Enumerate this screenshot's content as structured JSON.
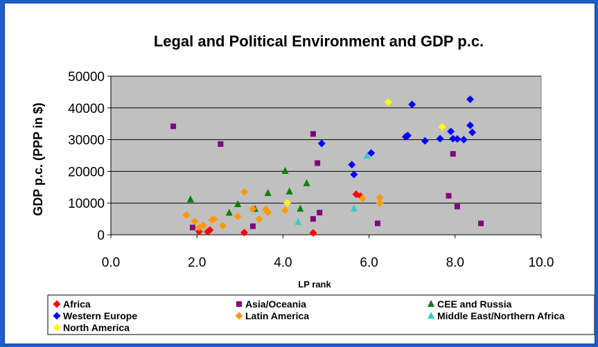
{
  "chart_data": {
    "type": "scatter",
    "title": "Legal and Political Environment and GDP p.c.",
    "xlabel": "LP rank",
    "ylabel": "GDP p.c. (PPP in $)",
    "xlim": [
      0,
      10
    ],
    "ylim": [
      0,
      50000
    ],
    "x_ticks": [
      "0.0",
      "2.0",
      "4.0",
      "6.0",
      "8.0",
      "10.0"
    ],
    "y_ticks": [
      "0",
      "10000",
      "20000",
      "30000",
      "40000",
      "50000"
    ],
    "grid": true,
    "legend_position": "bottom",
    "series": [
      {
        "name": "Africa",
        "color": "#ff0000",
        "marker": "diamond",
        "points": [
          [
            2.05,
            1000
          ],
          [
            2.25,
            1000
          ],
          [
            2.3,
            1500
          ],
          [
            3.1,
            700
          ],
          [
            4.7,
            600
          ],
          [
            5.7,
            12800
          ],
          [
            5.8,
            12200
          ]
        ]
      },
      {
        "name": "Asia/Oceania",
        "color": "#800080",
        "marker": "square",
        "points": [
          [
            1.45,
            34200
          ],
          [
            2.55,
            28600
          ],
          [
            4.7,
            31800
          ],
          [
            4.8,
            22600
          ],
          [
            1.9,
            2300
          ],
          [
            3.3,
            2700
          ],
          [
            4.7,
            5000
          ],
          [
            4.85,
            7000
          ],
          [
            6.2,
            3600
          ],
          [
            7.85,
            12300
          ],
          [
            7.95,
            25500
          ],
          [
            8.05,
            8900
          ],
          [
            8.6,
            3600
          ]
        ]
      },
      {
        "name": "CEE and Russia",
        "color": "#008000",
        "marker": "triangle",
        "points": [
          [
            1.85,
            11100
          ],
          [
            2.75,
            6900
          ],
          [
            2.95,
            9600
          ],
          [
            3.35,
            8100
          ],
          [
            3.65,
            13100
          ],
          [
            4.05,
            20100
          ],
          [
            4.15,
            13600
          ],
          [
            4.4,
            8200
          ],
          [
            4.55,
            16200
          ]
        ]
      },
      {
        "name": "Western Europe",
        "color": "#0000ff",
        "marker": "diamond",
        "points": [
          [
            4.9,
            28800
          ],
          [
            5.6,
            22100
          ],
          [
            5.65,
            19000
          ],
          [
            6.05,
            25800
          ],
          [
            6.85,
            30900
          ],
          [
            6.9,
            31300
          ],
          [
            7.0,
            41100
          ],
          [
            7.3,
            29600
          ],
          [
            7.65,
            30300
          ],
          [
            7.9,
            32600
          ],
          [
            7.95,
            30300
          ],
          [
            8.05,
            30200
          ],
          [
            8.2,
            30000
          ],
          [
            8.35,
            34500
          ],
          [
            8.35,
            42700
          ],
          [
            8.4,
            32300
          ]
        ]
      },
      {
        "name": "Latin America",
        "color": "#ff9900",
        "marker": "diamond",
        "points": [
          [
            1.75,
            6200
          ],
          [
            1.95,
            4200
          ],
          [
            2.05,
            2300
          ],
          [
            2.15,
            2900
          ],
          [
            2.35,
            4700
          ],
          [
            2.4,
            4900
          ],
          [
            2.6,
            2900
          ],
          [
            2.95,
            5800
          ],
          [
            3.1,
            13500
          ],
          [
            3.3,
            8200
          ],
          [
            3.45,
            4900
          ],
          [
            3.6,
            8000
          ],
          [
            3.65,
            7100
          ],
          [
            4.05,
            7700
          ],
          [
            5.85,
            11500
          ],
          [
            6.25,
            11700
          ],
          [
            6.25,
            10000
          ]
        ]
      },
      {
        "name": "Middle East/Northern Africa",
        "color": "#33cccc",
        "marker": "triangle",
        "points": [
          [
            4.35,
            4000
          ],
          [
            5.65,
            8200
          ],
          [
            5.95,
            24800
          ]
        ]
      },
      {
        "name": "North America",
        "color": "#ffff00",
        "marker": "diamond",
        "points": [
          [
            4.1,
            10100
          ],
          [
            6.45,
            41800
          ],
          [
            7.7,
            34000
          ]
        ]
      }
    ]
  }
}
